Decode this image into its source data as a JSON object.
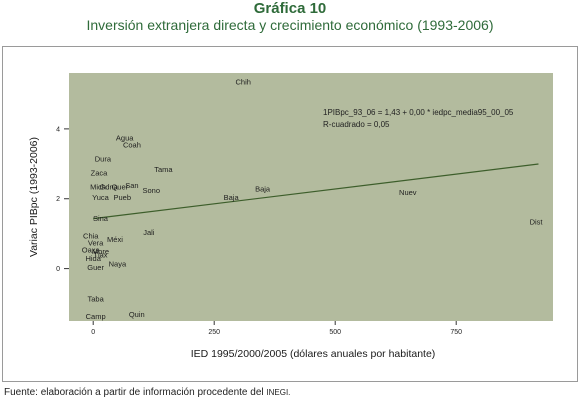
{
  "header": {
    "title": "Gráfica 10",
    "subtitle": "Inversión extranjera directa y crecimiento económico (1993-2006)"
  },
  "source": {
    "text": "Fuente: elaboración a partir de información procedente del",
    "org": "INEGI."
  },
  "colors": {
    "plot_background": "#b3bb9e",
    "fit_line": "#3d5e2b",
    "title": "#2f6b3a"
  },
  "chart_data": {
    "type": "scatter",
    "xlabel": "IED 1995/2000/2005 (dólares anuales por habitante)",
    "ylabel": "Variac PIBpc (1993-2006)",
    "xlim": [
      -50,
      950
    ],
    "ylim": [
      -1.5,
      5.6
    ],
    "xticks": [
      0,
      250,
      500,
      750
    ],
    "yticks": [
      0,
      2,
      4
    ],
    "grid": false,
    "equation": "1PIBpc_93_06 = 1,43 + 0,00 * iedpc_media95_00_05",
    "r_squared": "R-cuadrado = 0,05",
    "fit_line": {
      "intercept": 1.43,
      "slope": 0.0017,
      "x_range": [
        0,
        920
      ]
    },
    "points": [
      {
        "label": "Chih",
        "x": 310,
        "y": 5.35
      },
      {
        "label": "Agua",
        "x": 65,
        "y": 3.75
      },
      {
        "label": "Coah",
        "x": 80,
        "y": 3.55
      },
      {
        "label": "Dura",
        "x": 20,
        "y": 3.15
      },
      {
        "label": "Tama",
        "x": 145,
        "y": 2.85
      },
      {
        "label": "Zaca",
        "x": 12,
        "y": 2.75
      },
      {
        "label": "Mich",
        "x": 10,
        "y": 2.35
      },
      {
        "label": "Gdna",
        "x": 32,
        "y": 2.35
      },
      {
        "label": "Quer",
        "x": 55,
        "y": 2.35
      },
      {
        "label": "San",
        "x": 80,
        "y": 2.4
      },
      {
        "label": "Sono",
        "x": 120,
        "y": 2.25
      },
      {
        "label": "Yuca",
        "x": 15,
        "y": 2.05
      },
      {
        "label": "Pueb",
        "x": 60,
        "y": 2.05
      },
      {
        "label": "Baja",
        "x": 285,
        "y": 2.05
      },
      {
        "label": "Baja",
        "x": 350,
        "y": 2.3
      },
      {
        "label": "Nuev",
        "x": 650,
        "y": 2.2
      },
      {
        "label": "Dist",
        "x": 915,
        "y": 1.35
      },
      {
        "label": "Sina",
        "x": 15,
        "y": 1.45
      },
      {
        "label": "Jali",
        "x": 115,
        "y": 1.05
      },
      {
        "label": "Chia",
        "x": -5,
        "y": 0.95
      },
      {
        "label": "Méxi",
        "x": 45,
        "y": 0.85
      },
      {
        "label": "Vera",
        "x": 5,
        "y": 0.75
      },
      {
        "label": "Oaxa",
        "x": -5,
        "y": 0.55
      },
      {
        "label": "More",
        "x": 15,
        "y": 0.5
      },
      {
        "label": "Tlax",
        "x": 15,
        "y": 0.4
      },
      {
        "label": "Hida",
        "x": 0,
        "y": 0.3
      },
      {
        "label": "Naya",
        "x": 50,
        "y": 0.15
      },
      {
        "label": "Guer",
        "x": 5,
        "y": 0.05
      },
      {
        "label": "Taba",
        "x": 5,
        "y": -0.85
      },
      {
        "label": "Camp",
        "x": 5,
        "y": -1.35
      },
      {
        "label": "Quin",
        "x": 90,
        "y": -1.3
      }
    ]
  }
}
